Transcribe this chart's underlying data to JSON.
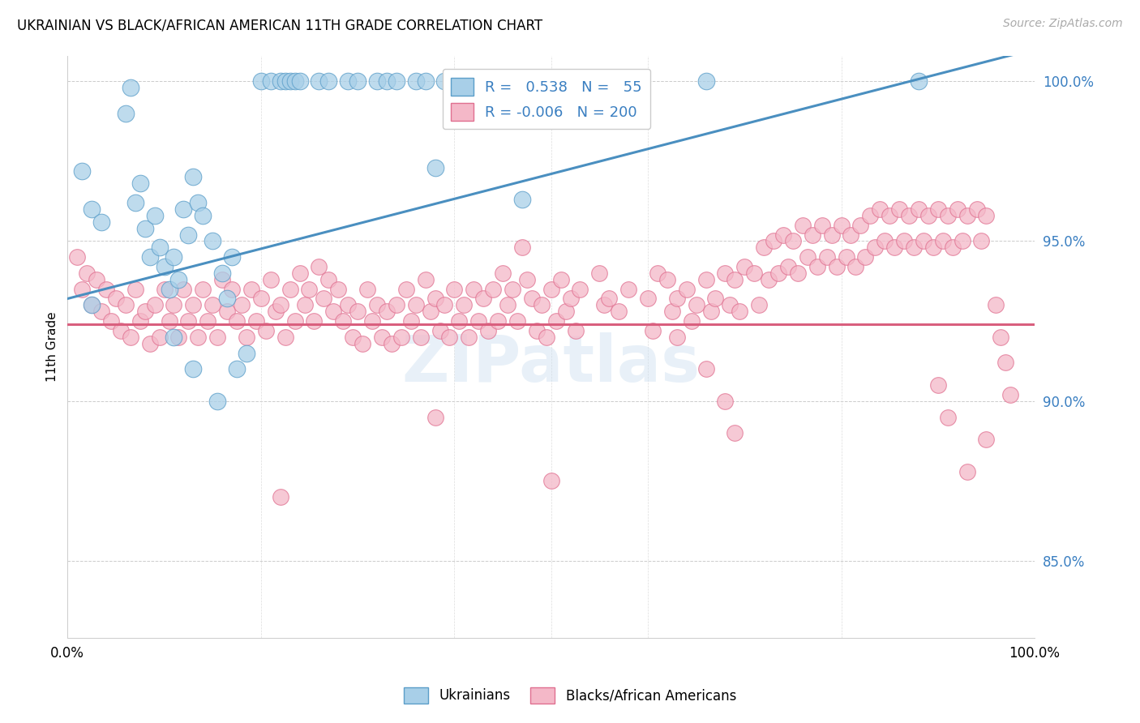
{
  "title": "UKRAINIAN VS BLACK/AFRICAN AMERICAN 11TH GRADE CORRELATION CHART",
  "source": "Source: ZipAtlas.com",
  "ylabel": "11th Grade",
  "legend_labels": [
    "Ukrainians",
    "Blacks/African Americans"
  ],
  "legend_R": [
    0.538,
    -0.006
  ],
  "legend_N": [
    55,
    200
  ],
  "blue_color": "#a8cfe8",
  "pink_color": "#f4b8c8",
  "blue_edge_color": "#5b9ec9",
  "pink_edge_color": "#e07090",
  "blue_line_color": "#4a8fc0",
  "pink_line_color": "#d95f7e",
  "watermark": "ZIPatlas",
  "yaxis_ticks": [
    85.0,
    90.0,
    95.0,
    100.0
  ],
  "xlim": [
    0.0,
    1.0
  ],
  "ylim": [
    0.826,
    1.008
  ],
  "blue_trend_start_x": 0.0,
  "blue_trend_start_y": 0.932,
  "blue_trend_end_x": 1.0,
  "blue_trend_end_y": 1.01,
  "pink_trend_y": 0.924,
  "blue_points": [
    [
      0.015,
      0.972
    ],
    [
      0.025,
      0.96
    ],
    [
      0.035,
      0.956
    ],
    [
      0.06,
      0.99
    ],
    [
      0.065,
      0.998
    ],
    [
      0.07,
      0.962
    ],
    [
      0.075,
      0.968
    ],
    [
      0.08,
      0.954
    ],
    [
      0.085,
      0.945
    ],
    [
      0.09,
      0.958
    ],
    [
      0.095,
      0.948
    ],
    [
      0.1,
      0.942
    ],
    [
      0.105,
      0.935
    ],
    [
      0.11,
      0.945
    ],
    [
      0.115,
      0.938
    ],
    [
      0.12,
      0.96
    ],
    [
      0.125,
      0.952
    ],
    [
      0.13,
      0.97
    ],
    [
      0.135,
      0.962
    ],
    [
      0.14,
      0.958
    ],
    [
      0.15,
      0.95
    ],
    [
      0.16,
      0.94
    ],
    [
      0.165,
      0.932
    ],
    [
      0.17,
      0.945
    ],
    [
      0.2,
      1.0
    ],
    [
      0.21,
      1.0
    ],
    [
      0.22,
      1.0
    ],
    [
      0.225,
      1.0
    ],
    [
      0.23,
      1.0
    ],
    [
      0.235,
      1.0
    ],
    [
      0.24,
      1.0
    ],
    [
      0.26,
      1.0
    ],
    [
      0.27,
      1.0
    ],
    [
      0.29,
      1.0
    ],
    [
      0.3,
      1.0
    ],
    [
      0.32,
      1.0
    ],
    [
      0.33,
      1.0
    ],
    [
      0.34,
      1.0
    ],
    [
      0.36,
      1.0
    ],
    [
      0.37,
      1.0
    ],
    [
      0.39,
      1.0
    ],
    [
      0.4,
      1.0
    ],
    [
      0.38,
      0.973
    ],
    [
      0.47,
      0.963
    ],
    [
      0.55,
      1.0
    ],
    [
      0.66,
      1.0
    ],
    [
      0.88,
      1.0
    ],
    [
      0.025,
      0.93
    ],
    [
      0.11,
      0.92
    ],
    [
      0.13,
      0.91
    ],
    [
      0.155,
      0.9
    ],
    [
      0.175,
      0.91
    ],
    [
      0.185,
      0.915
    ]
  ],
  "pink_points": [
    [
      0.01,
      0.945
    ],
    [
      0.015,
      0.935
    ],
    [
      0.02,
      0.94
    ],
    [
      0.025,
      0.93
    ],
    [
      0.03,
      0.938
    ],
    [
      0.035,
      0.928
    ],
    [
      0.04,
      0.935
    ],
    [
      0.045,
      0.925
    ],
    [
      0.05,
      0.932
    ],
    [
      0.055,
      0.922
    ],
    [
      0.06,
      0.93
    ],
    [
      0.065,
      0.92
    ],
    [
      0.07,
      0.935
    ],
    [
      0.075,
      0.925
    ],
    [
      0.08,
      0.928
    ],
    [
      0.085,
      0.918
    ],
    [
      0.09,
      0.93
    ],
    [
      0.095,
      0.92
    ],
    [
      0.1,
      0.935
    ],
    [
      0.105,
      0.925
    ],
    [
      0.11,
      0.93
    ],
    [
      0.115,
      0.92
    ],
    [
      0.12,
      0.935
    ],
    [
      0.125,
      0.925
    ],
    [
      0.13,
      0.93
    ],
    [
      0.135,
      0.92
    ],
    [
      0.14,
      0.935
    ],
    [
      0.145,
      0.925
    ],
    [
      0.15,
      0.93
    ],
    [
      0.155,
      0.92
    ],
    [
      0.16,
      0.938
    ],
    [
      0.165,
      0.928
    ],
    [
      0.17,
      0.935
    ],
    [
      0.175,
      0.925
    ],
    [
      0.18,
      0.93
    ],
    [
      0.185,
      0.92
    ],
    [
      0.19,
      0.935
    ],
    [
      0.195,
      0.925
    ],
    [
      0.2,
      0.932
    ],
    [
      0.205,
      0.922
    ],
    [
      0.21,
      0.938
    ],
    [
      0.215,
      0.928
    ],
    [
      0.22,
      0.93
    ],
    [
      0.225,
      0.92
    ],
    [
      0.23,
      0.935
    ],
    [
      0.235,
      0.925
    ],
    [
      0.24,
      0.94
    ],
    [
      0.245,
      0.93
    ],
    [
      0.25,
      0.935
    ],
    [
      0.255,
      0.925
    ],
    [
      0.26,
      0.942
    ],
    [
      0.265,
      0.932
    ],
    [
      0.27,
      0.938
    ],
    [
      0.275,
      0.928
    ],
    [
      0.28,
      0.935
    ],
    [
      0.285,
      0.925
    ],
    [
      0.29,
      0.93
    ],
    [
      0.295,
      0.92
    ],
    [
      0.3,
      0.928
    ],
    [
      0.305,
      0.918
    ],
    [
      0.31,
      0.935
    ],
    [
      0.315,
      0.925
    ],
    [
      0.32,
      0.93
    ],
    [
      0.325,
      0.92
    ],
    [
      0.33,
      0.928
    ],
    [
      0.335,
      0.918
    ],
    [
      0.34,
      0.93
    ],
    [
      0.345,
      0.92
    ],
    [
      0.35,
      0.935
    ],
    [
      0.355,
      0.925
    ],
    [
      0.36,
      0.93
    ],
    [
      0.365,
      0.92
    ],
    [
      0.37,
      0.938
    ],
    [
      0.375,
      0.928
    ],
    [
      0.38,
      0.932
    ],
    [
      0.385,
      0.922
    ],
    [
      0.39,
      0.93
    ],
    [
      0.395,
      0.92
    ],
    [
      0.4,
      0.935
    ],
    [
      0.405,
      0.925
    ],
    [
      0.41,
      0.93
    ],
    [
      0.415,
      0.92
    ],
    [
      0.42,
      0.935
    ],
    [
      0.425,
      0.925
    ],
    [
      0.43,
      0.932
    ],
    [
      0.435,
      0.922
    ],
    [
      0.44,
      0.935
    ],
    [
      0.445,
      0.925
    ],
    [
      0.45,
      0.94
    ],
    [
      0.455,
      0.93
    ],
    [
      0.46,
      0.935
    ],
    [
      0.465,
      0.925
    ],
    [
      0.47,
      0.948
    ],
    [
      0.475,
      0.938
    ],
    [
      0.48,
      0.932
    ],
    [
      0.485,
      0.922
    ],
    [
      0.49,
      0.93
    ],
    [
      0.495,
      0.92
    ],
    [
      0.5,
      0.935
    ],
    [
      0.505,
      0.925
    ],
    [
      0.51,
      0.938
    ],
    [
      0.515,
      0.928
    ],
    [
      0.52,
      0.932
    ],
    [
      0.525,
      0.922
    ],
    [
      0.53,
      0.935
    ],
    [
      0.55,
      0.94
    ],
    [
      0.555,
      0.93
    ],
    [
      0.56,
      0.932
    ],
    [
      0.57,
      0.928
    ],
    [
      0.58,
      0.935
    ],
    [
      0.6,
      0.932
    ],
    [
      0.605,
      0.922
    ],
    [
      0.61,
      0.94
    ],
    [
      0.62,
      0.938
    ],
    [
      0.625,
      0.928
    ],
    [
      0.63,
      0.932
    ],
    [
      0.64,
      0.935
    ],
    [
      0.645,
      0.925
    ],
    [
      0.65,
      0.93
    ],
    [
      0.66,
      0.938
    ],
    [
      0.665,
      0.928
    ],
    [
      0.67,
      0.932
    ],
    [
      0.68,
      0.94
    ],
    [
      0.685,
      0.93
    ],
    [
      0.69,
      0.938
    ],
    [
      0.695,
      0.928
    ],
    [
      0.7,
      0.942
    ],
    [
      0.71,
      0.94
    ],
    [
      0.715,
      0.93
    ],
    [
      0.72,
      0.948
    ],
    [
      0.725,
      0.938
    ],
    [
      0.73,
      0.95
    ],
    [
      0.735,
      0.94
    ],
    [
      0.74,
      0.952
    ],
    [
      0.745,
      0.942
    ],
    [
      0.75,
      0.95
    ],
    [
      0.755,
      0.94
    ],
    [
      0.76,
      0.955
    ],
    [
      0.765,
      0.945
    ],
    [
      0.77,
      0.952
    ],
    [
      0.775,
      0.942
    ],
    [
      0.78,
      0.955
    ],
    [
      0.785,
      0.945
    ],
    [
      0.79,
      0.952
    ],
    [
      0.795,
      0.942
    ],
    [
      0.8,
      0.955
    ],
    [
      0.805,
      0.945
    ],
    [
      0.81,
      0.952
    ],
    [
      0.815,
      0.942
    ],
    [
      0.82,
      0.955
    ],
    [
      0.825,
      0.945
    ],
    [
      0.83,
      0.958
    ],
    [
      0.835,
      0.948
    ],
    [
      0.84,
      0.96
    ],
    [
      0.845,
      0.95
    ],
    [
      0.85,
      0.958
    ],
    [
      0.855,
      0.948
    ],
    [
      0.86,
      0.96
    ],
    [
      0.865,
      0.95
    ],
    [
      0.87,
      0.958
    ],
    [
      0.875,
      0.948
    ],
    [
      0.88,
      0.96
    ],
    [
      0.885,
      0.95
    ],
    [
      0.89,
      0.958
    ],
    [
      0.895,
      0.948
    ],
    [
      0.9,
      0.96
    ],
    [
      0.905,
      0.95
    ],
    [
      0.91,
      0.958
    ],
    [
      0.915,
      0.948
    ],
    [
      0.92,
      0.96
    ],
    [
      0.925,
      0.95
    ],
    [
      0.93,
      0.958
    ],
    [
      0.94,
      0.96
    ],
    [
      0.945,
      0.95
    ],
    [
      0.95,
      0.958
    ],
    [
      0.96,
      0.93
    ],
    [
      0.965,
      0.92
    ],
    [
      0.97,
      0.912
    ],
    [
      0.975,
      0.902
    ],
    [
      0.38,
      0.895
    ],
    [
      0.22,
      0.87
    ],
    [
      0.5,
      0.875
    ],
    [
      0.63,
      0.92
    ],
    [
      0.66,
      0.91
    ],
    [
      0.68,
      0.9
    ],
    [
      0.69,
      0.89
    ],
    [
      0.9,
      0.905
    ],
    [
      0.91,
      0.895
    ],
    [
      0.93,
      0.878
    ],
    [
      0.95,
      0.888
    ]
  ]
}
